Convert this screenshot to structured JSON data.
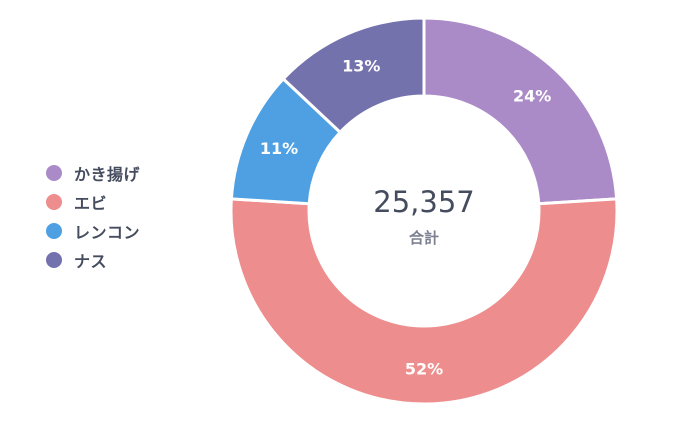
{
  "chart_data": {
    "type": "pie",
    "variant": "donut",
    "categories": [
      "かき揚げ",
      "エビ",
      "レンコン",
      "ナス"
    ],
    "values": [
      24,
      52,
      11,
      13
    ],
    "value_labels": [
      "24%",
      "52%",
      "11%",
      "13%"
    ],
    "colors": [
      "#ab8bc7",
      "#ee8d8d",
      "#4fa0e2",
      "#7472ad"
    ],
    "legend_position": "left",
    "center": {
      "value": "25,357",
      "label": "合計"
    }
  }
}
